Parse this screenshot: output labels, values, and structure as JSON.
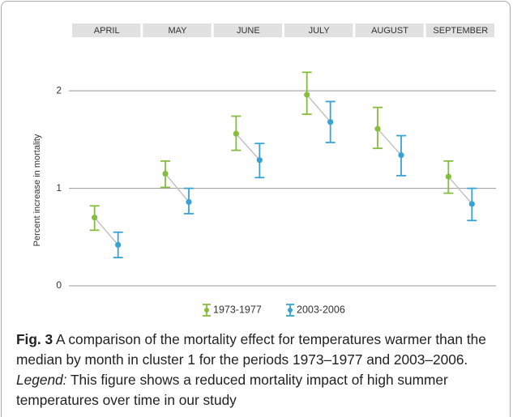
{
  "chart_data": {
    "type": "errorbar",
    "categories": [
      "APRIL",
      "MAY",
      "JUNE",
      "JULY",
      "AUGUST",
      "SEPTEMBER"
    ],
    "y_label": "Percent increase in mortality",
    "ylim": [
      0,
      2.4
    ],
    "yticks": [
      0,
      1,
      2
    ],
    "grid": true,
    "legend": "bottom",
    "series": [
      {
        "name": "1973-1977",
        "color": "#86bd3e",
        "values": [
          0.7,
          1.15,
          1.56,
          1.96,
          1.61,
          1.12
        ],
        "lower": [
          0.57,
          1.01,
          1.39,
          1.76,
          1.41,
          0.95
        ],
        "upper": [
          0.82,
          1.28,
          1.74,
          2.19,
          1.83,
          1.28
        ]
      },
      {
        "name": "2003-2006",
        "color": "#38a3d3",
        "values": [
          0.42,
          0.86,
          1.29,
          1.68,
          1.34,
          0.84
        ],
        "lower": [
          0.29,
          0.74,
          1.11,
          1.47,
          1.13,
          0.67
        ],
        "upper": [
          0.55,
          1.0,
          1.46,
          1.89,
          1.54,
          1.0
        ]
      }
    ]
  },
  "caption": {
    "label": "Fig. 3",
    "text": "A comparison of the mortality effect for temperatures warmer than the median by month in cluster 1 for the periods 1973–1977 and 2003–2006.",
    "legend_label": "Legend:",
    "legend_text": "This figure shows a reduced mortality impact of high summer temperatures over time in our study"
  }
}
